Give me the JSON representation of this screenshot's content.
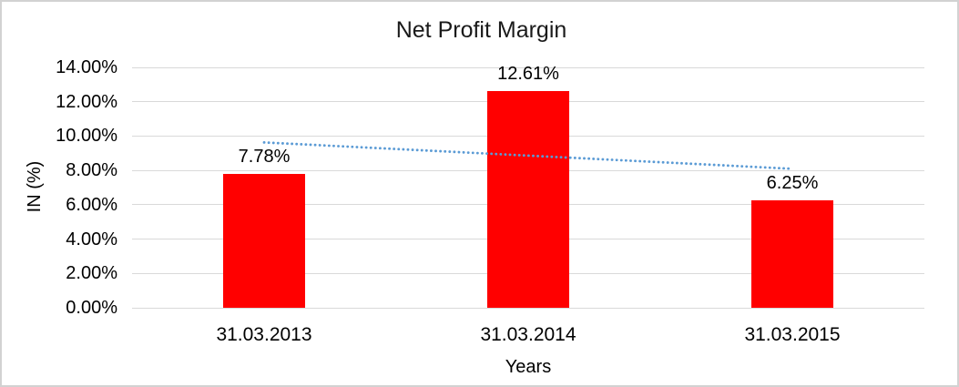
{
  "window": {
    "background_color": "#FFFFFF",
    "border_color": "#D2D2D2"
  },
  "chart_data": {
    "type": "bar",
    "title": "Net Profit Margin",
    "xlabel": "Years",
    "ylabel": "IN (%)",
    "categories": [
      "31.03.2013",
      "31.03.2014",
      "31.03.2015"
    ],
    "values": [
      7.78,
      12.61,
      6.25
    ],
    "value_labels": [
      "7.78%",
      "12.61%",
      "6.25%"
    ],
    "ylim": [
      0,
      14
    ],
    "ytick_step": 2,
    "ytick_labels": [
      "0.00%",
      "2.00%",
      "4.00%",
      "6.00%",
      "8.00%",
      "10.00%",
      "12.00%",
      "14.00%"
    ],
    "grid": true,
    "legend": "none",
    "bar_color": "#FF0000",
    "gridline_color": "#D9D9D9",
    "text_color": "#000000",
    "trendline": {
      "type": "linear",
      "style": "dotted",
      "color": "#5B9BD5",
      "start_value": 9.63,
      "end_value": 8.1
    }
  }
}
